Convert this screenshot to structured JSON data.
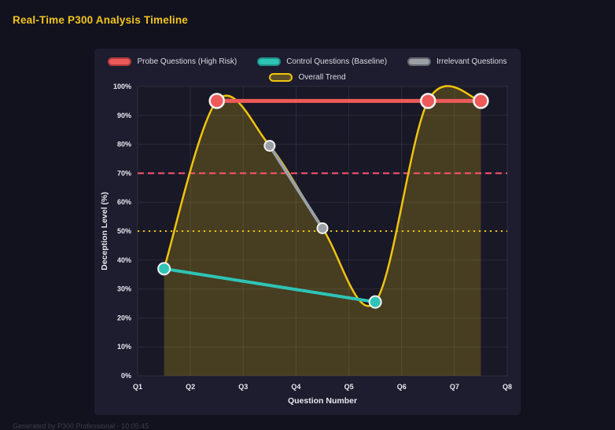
{
  "page": {
    "title": "Real-Time P300 Analysis Timeline",
    "footer": "Generated by P300 Professional - 10:05:45"
  },
  "chart_data": {
    "type": "line",
    "title": "Real-Time P300 Analysis Timeline",
    "xlabel": "Question Number",
    "ylabel": "Deception Level (%)",
    "xlim": [
      1,
      8
    ],
    "ylim": [
      0,
      100
    ],
    "x_ticks": [
      "Q1",
      "Q2",
      "Q3",
      "Q4",
      "Q5",
      "Q6",
      "Q7",
      "Q8"
    ],
    "y_ticks": [
      "0%",
      "10%",
      "20%",
      "30%",
      "40%",
      "50%",
      "60%",
      "70%",
      "80%",
      "90%",
      "100%"
    ],
    "grid": true,
    "legend_position": "top",
    "series": [
      {
        "name": "Probe Questions (High Risk)",
        "color": "#ee5a5a",
        "border": "#b03a3a",
        "pill": "#ee5a5a",
        "x": [
          2.5,
          6.5,
          7.5
        ],
        "y": [
          95,
          95,
          95
        ],
        "line_width": 5,
        "marker_radius": 9,
        "smooth": false,
        "fill": false
      },
      {
        "name": "Control Questions (Baseline)",
        "color": "#2ec4b6",
        "border": "#1f8f85",
        "pill": "#2ec4b6",
        "x": [
          1.5,
          5.5
        ],
        "y": [
          37,
          25.5
        ],
        "line_width": 4,
        "marker_radius": 7.5,
        "smooth": false,
        "fill": false
      },
      {
        "name": "Irrelevant Questions",
        "color": "#9aa0a6",
        "border": "#63676d",
        "pill": "#9aa0a6",
        "x": [
          3.5,
          4.5
        ],
        "y": [
          79.5,
          51
        ],
        "line_width": 4,
        "marker_radius": 6.5,
        "smooth": false,
        "fill": false
      },
      {
        "name": "Overall Trend",
        "color": "#f1c40f",
        "border": "#f1c40f",
        "pill": "rgba(241,196,15,0.3)",
        "x": [
          1.5,
          2.5,
          3.5,
          4.5,
          5.5,
          6.5,
          7.5
        ],
        "y": [
          37,
          95,
          79.5,
          51,
          25.5,
          95,
          95
        ],
        "line_width": 2.5,
        "marker_radius": 0,
        "smooth": true,
        "fill": true,
        "fill_opacity": 0.22
      }
    ],
    "thresholds": [
      {
        "value": 70,
        "color": "#ff5470",
        "dash": "8 5",
        "width": 2
      },
      {
        "value": 50,
        "color": "#f1c40f",
        "dash": "2 5",
        "width": 2
      }
    ]
  },
  "colors": {
    "page_bg": "#12121f",
    "panel_bg": "#1d1d2f",
    "plot_bg": "rgba(0,0,0,0.16)",
    "grid": "rgba(255,255,255,0.08)",
    "tick_text": "#e6e8ee",
    "marker_ring": "#f2f2f2",
    "title": "#f2c51d"
  }
}
